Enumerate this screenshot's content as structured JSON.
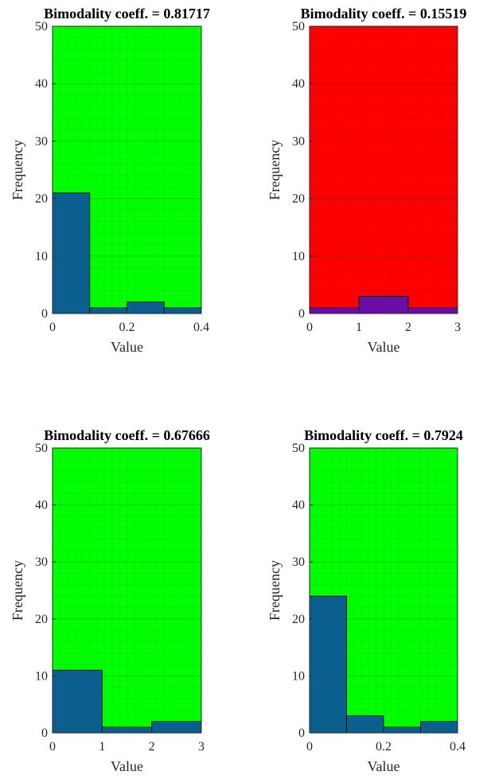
{
  "chart_data": [
    {
      "type": "bar",
      "title": "Bimodality coeff. = 0.81717",
      "xlabel": "Value",
      "ylabel": "Frequency",
      "background": "#00ff00",
      "bar_color": "#0b5f8e",
      "xlim": [
        0,
        0.4
      ],
      "ylim": [
        0,
        50
      ],
      "xticks": [
        "0",
        "0.2",
        "0.4"
      ],
      "yticks": [
        "0",
        "10",
        "20",
        "30",
        "40",
        "50"
      ],
      "bins": [
        [
          0,
          0.1
        ],
        [
          0.1,
          0.2
        ],
        [
          0.2,
          0.3
        ],
        [
          0.3,
          0.4
        ]
      ],
      "values": [
        21,
        1,
        2,
        1
      ]
    },
    {
      "type": "bar",
      "title": "Bimodality coeff. = 0.15519",
      "xlabel": "Value",
      "ylabel": "Frequency",
      "background": "#ff0000",
      "bar_color": "#6a0ca6",
      "xlim": [
        0,
        3
      ],
      "ylim": [
        0,
        50
      ],
      "xticks": [
        "0",
        "1",
        "2",
        "3"
      ],
      "yticks": [
        "0",
        "10",
        "20",
        "30",
        "40",
        "50"
      ],
      "bins": [
        [
          0,
          1
        ],
        [
          1,
          2
        ],
        [
          2,
          3
        ]
      ],
      "values": [
        1,
        3,
        1
      ]
    },
    {
      "type": "bar",
      "title": "Bimodality coeff. = 0.67666",
      "xlabel": "Value",
      "ylabel": "Frequency",
      "background": "#00ff00",
      "bar_color": "#0b5f8e",
      "xlim": [
        0,
        3
      ],
      "ylim": [
        0,
        50
      ],
      "xticks": [
        "0",
        "1",
        "2",
        "3"
      ],
      "yticks": [
        "0",
        "10",
        "20",
        "30",
        "40",
        "50"
      ],
      "bins": [
        [
          0,
          1
        ],
        [
          1,
          2
        ],
        [
          2,
          3
        ]
      ],
      "values": [
        11,
        1,
        2
      ]
    },
    {
      "type": "bar",
      "title": "Bimodality coeff. = 0.7924",
      "xlabel": "Value",
      "ylabel": "Frequency",
      "background": "#00ff00",
      "bar_color": "#0b5f8e",
      "xlim": [
        0,
        0.4
      ],
      "ylim": [
        0,
        50
      ],
      "xticks": [
        "0",
        "0.2",
        "0.4"
      ],
      "yticks": [
        "0",
        "10",
        "20",
        "30",
        "40",
        "50"
      ],
      "bins": [
        [
          0,
          0.1
        ],
        [
          0.1,
          0.2
        ],
        [
          0.2,
          0.3
        ],
        [
          0.3,
          0.4
        ]
      ],
      "values": [
        24,
        3,
        1,
        2
      ]
    }
  ]
}
